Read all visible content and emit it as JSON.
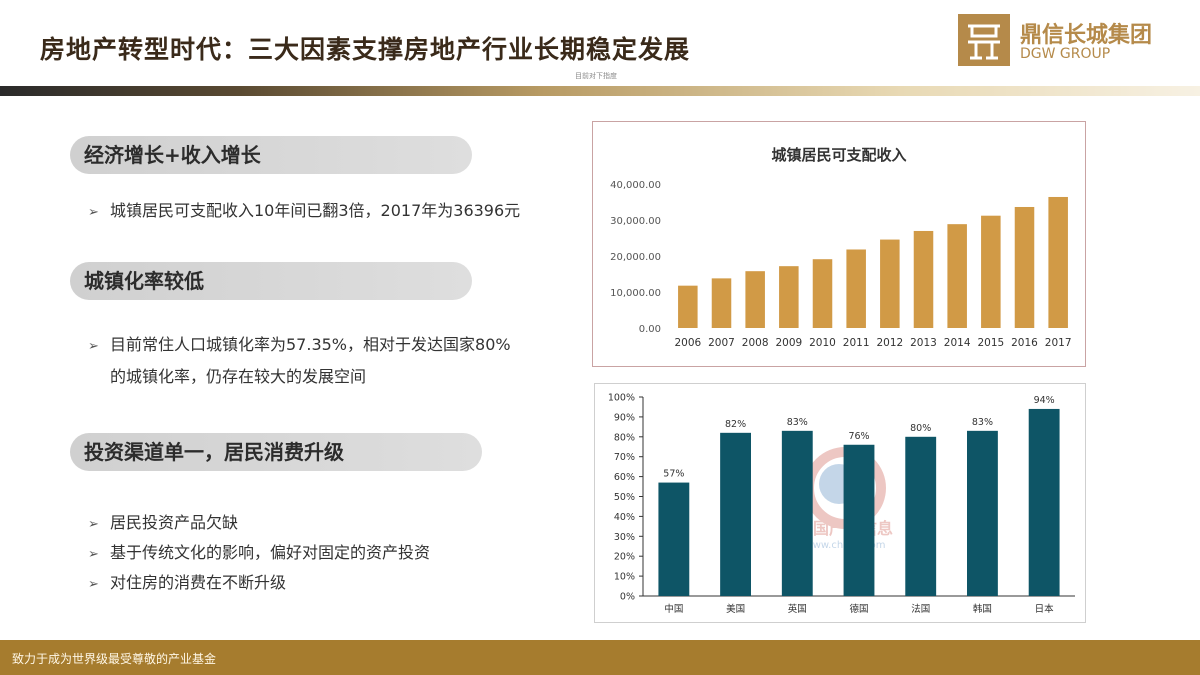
{
  "header": {
    "title": "房地产转型时代：三大因素支撑房地产行业长期稳定发展",
    "subnote": "目前对下指度"
  },
  "logo": {
    "name_cn": "鼎信长城集团",
    "name_en": "DGW GROUP"
  },
  "sections": [
    {
      "heading": "经济增长+收入增长",
      "bullets": [
        "城镇居民可支配收入10年间已翻3倍，2017年为36396元"
      ]
    },
    {
      "heading": "城镇化率较低",
      "bullets": [
        "目前常住人口城镇化率为57.35%，相对于发达国家80%",
        "的城镇化率，仍存在较大的发展空间"
      ]
    },
    {
      "heading": "投资渠道单一，居民消费升级",
      "bullets": [
        "居民投资产品欠缺",
        "基于传统文化的影响，偏好对固定的资产投资",
        "对住房的消费在不断升级"
      ]
    }
  ],
  "bullet_arrow": "➢",
  "footer": {
    "text": "致力于成为世界级最受尊敬的产业基金"
  },
  "colors": {
    "gold": "#b58a4a",
    "bar_gold": "#d19a46",
    "bar_teal": "#0e5566",
    "footer": "#a67c2e"
  },
  "chart_data": [
    {
      "type": "bar",
      "title": "城镇居民可支配收入",
      "categories": [
        "2006",
        "2007",
        "2008",
        "2009",
        "2010",
        "2011",
        "2012",
        "2013",
        "2014",
        "2015",
        "2016",
        "2017"
      ],
      "values": [
        11759,
        13786,
        15781,
        17175,
        19109,
        21810,
        24565,
        26955,
        28844,
        31195,
        33616,
        36396
      ],
      "ylim": [
        0,
        40000
      ],
      "yticks": [
        0,
        10000,
        20000,
        30000,
        40000
      ],
      "ytick_labels": [
        "0.00",
        "10,000.00",
        "20,000.00",
        "30,000.00",
        "40,000.00"
      ],
      "grid": false
    },
    {
      "type": "bar",
      "categories": [
        "中国",
        "美国",
        "英国",
        "德国",
        "法国",
        "韩国",
        "日本"
      ],
      "values": [
        57,
        82,
        83,
        76,
        80,
        83,
        94
      ],
      "data_labels": [
        "57%",
        "82%",
        "83%",
        "76%",
        "80%",
        "83%",
        "94%"
      ],
      "ylim": [
        0,
        100
      ],
      "yticks": [
        0,
        10,
        20,
        30,
        40,
        50,
        60,
        70,
        80,
        90,
        100
      ],
      "ytick_labels": [
        "0%",
        "10%",
        "20%",
        "30%",
        "40%",
        "50%",
        "60%",
        "70%",
        "80%",
        "90%",
        "100%"
      ],
      "watermark_text": "中国产业信息",
      "watermark_url": "www.chyxx.com",
      "grid": false
    }
  ]
}
